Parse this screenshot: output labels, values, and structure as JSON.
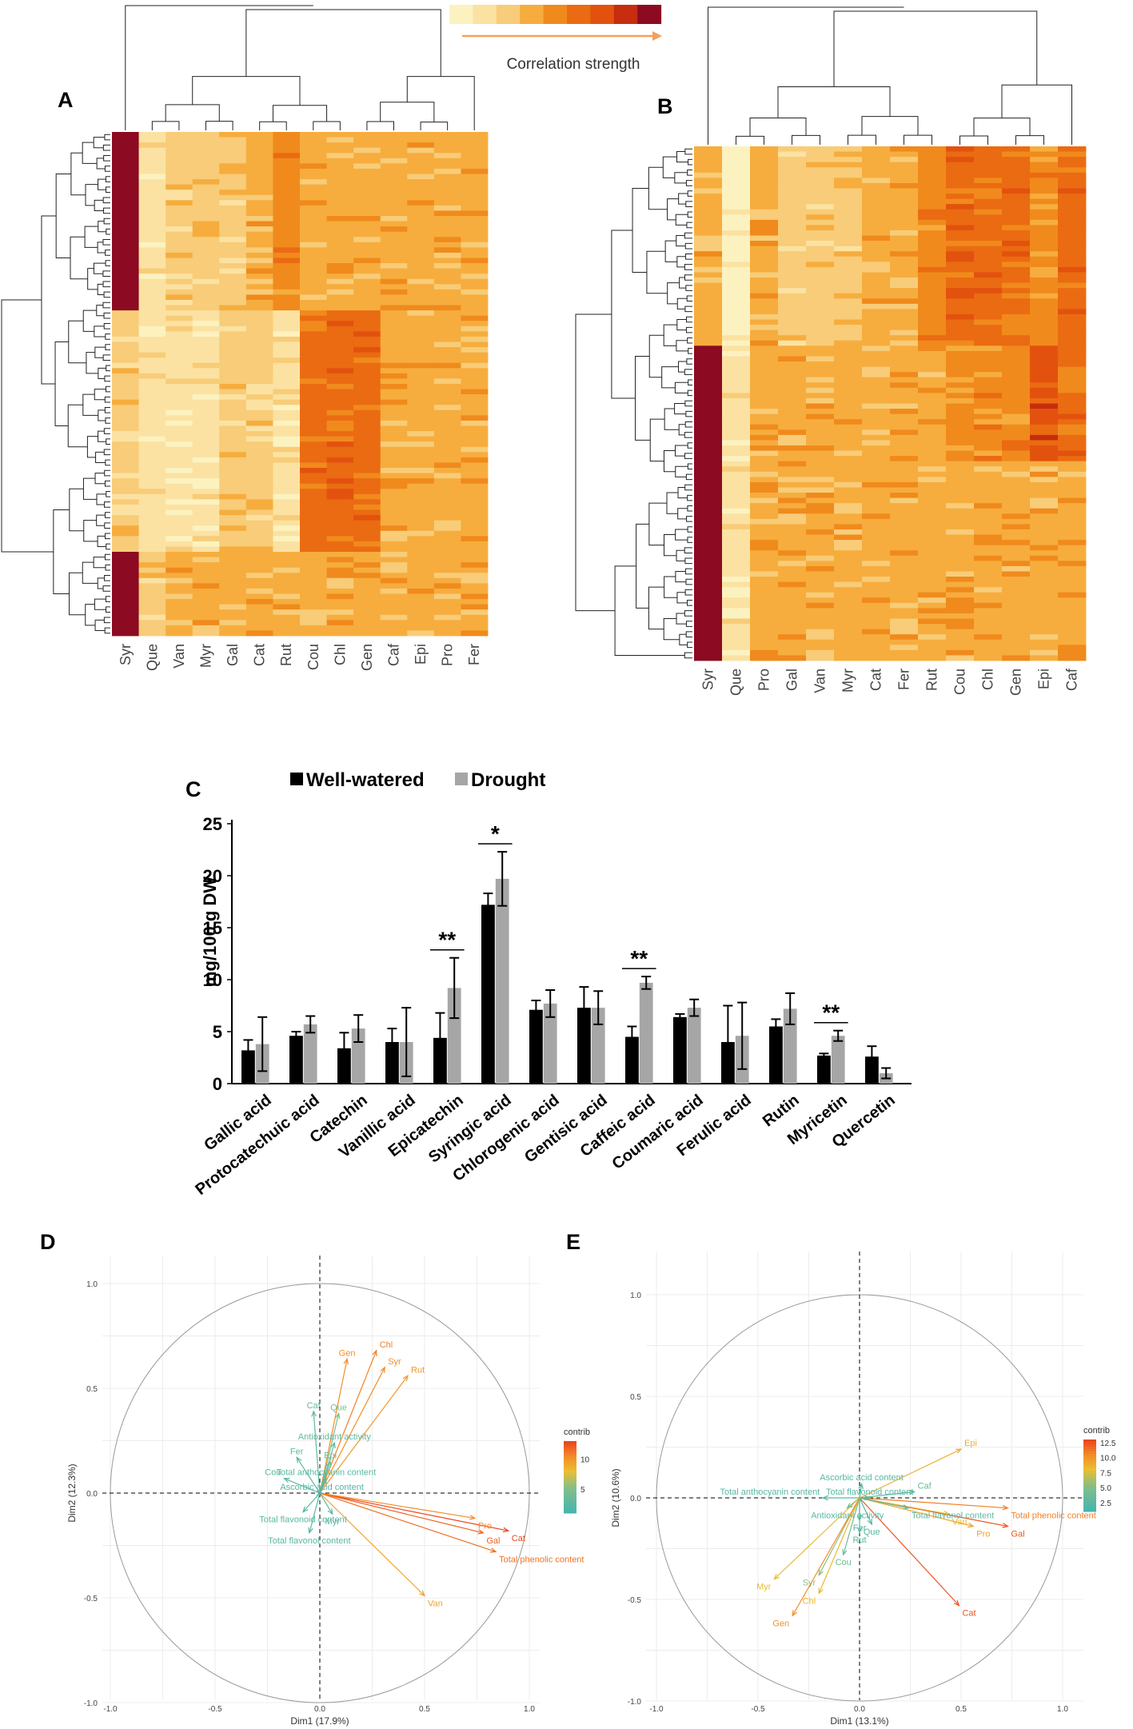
{
  "figure": {
    "panel_labels": [
      "A",
      "B",
      "C",
      "D",
      "E"
    ],
    "legend_label": "Correlation strength",
    "scale_colors": [
      "#fcf2c0",
      "#fbe2a2",
      "#f8cc78",
      "#f6ad3e",
      "#f08a1c",
      "#ea6b12",
      "#e2520e",
      "#c72d0e",
      "#8c0a22"
    ]
  },
  "heatmap_a": {
    "columns": [
      "Syr",
      "Que",
      "Van",
      "Myr",
      "Gal",
      "Cat",
      "Rut",
      "Cou",
      "Chl",
      "Gen",
      "Caf",
      "Epi",
      "Pro",
      "Fer"
    ]
  },
  "heatmap_b": {
    "columns": [
      "Syr",
      "Que",
      "Pro",
      "Gal",
      "Van",
      "Myr",
      "Cat",
      "Fer",
      "Rut",
      "Cou",
      "Chl",
      "Gen",
      "Epi",
      "Caf"
    ]
  },
  "chart_data": [
    {
      "type": "heatmap",
      "panel": "A",
      "columns": [
        "Syr",
        "Que",
        "Van",
        "Myr",
        "Gal",
        "Cat",
        "Rut",
        "Cou",
        "Chl",
        "Gen",
        "Caf",
        "Epi",
        "Pro",
        "Fer"
      ],
      "row_groups": [
        {
          "rows": 34,
          "levels": [
            8,
            1,
            2,
            2,
            2,
            3,
            4,
            3,
            3,
            3,
            3,
            3,
            3,
            3
          ]
        },
        {
          "rows": 46,
          "levels": [
            2,
            1,
            1,
            1,
            2,
            2,
            1,
            5,
            5,
            5,
            3,
            3,
            3,
            3
          ]
        },
        {
          "rows": 16,
          "levels": [
            8,
            2,
            3,
            3,
            3,
            3,
            3,
            3,
            3,
            3,
            3,
            3,
            3,
            3
          ]
        }
      ],
      "legend": "Correlation strength"
    },
    {
      "type": "heatmap",
      "panel": "B",
      "columns": [
        "Syr",
        "Que",
        "Pro",
        "Gal",
        "Van",
        "Myr",
        "Cat",
        "Fer",
        "Rut",
        "Cou",
        "Chl",
        "Gen",
        "Epi",
        "Caf"
      ],
      "row_groups": [
        {
          "rows": 38,
          "levels": [
            3,
            0,
            3,
            2,
            2,
            2,
            3,
            3,
            4,
            5,
            5,
            5,
            4,
            5
          ]
        },
        {
          "rows": 22,
          "levels": [
            8,
            1,
            3,
            3,
            3,
            3,
            3,
            3,
            3,
            4,
            4,
            4,
            6,
            5
          ]
        },
        {
          "rows": 38,
          "levels": [
            8,
            1,
            3,
            3,
            3,
            3,
            3,
            3,
            3,
            3,
            3,
            3,
            3,
            3
          ]
        }
      ],
      "legend": "Correlation strength"
    },
    {
      "type": "bar",
      "panel": "C",
      "categories": [
        "Gallic acid",
        "Protocatechuic acid",
        "Catechin",
        "Vanillic acid",
        "Epicatechin",
        "Syringic acid",
        "Chlorogenic acid",
        "Gentisic acid",
        "Caffeic acid",
        "Coumaric acid",
        "Ferulic acid",
        "Rutin",
        "Myricetin",
        "Quercetin"
      ],
      "series": [
        {
          "name": "Well-watered",
          "color": "#000000",
          "values": [
            3.2,
            4.6,
            3.4,
            4.0,
            4.4,
            17.2,
            7.1,
            7.3,
            4.5,
            6.4,
            4.0,
            5.5,
            2.7,
            2.6
          ],
          "errors": [
            1.0,
            0.4,
            1.5,
            1.3,
            2.4,
            1.1,
            0.9,
            2.0,
            1.0,
            0.3,
            3.5,
            0.7,
            0.2,
            1.0
          ]
        },
        {
          "name": "Drought",
          "color": "#a6a6a6",
          "values": [
            3.8,
            5.7,
            5.3,
            4.0,
            9.2,
            19.7,
            7.7,
            7.3,
            9.7,
            7.3,
            4.6,
            7.2,
            4.6,
            1.0
          ],
          "errors": [
            2.6,
            0.8,
            1.3,
            3.3,
            2.9,
            2.6,
            1.3,
            1.6,
            0.6,
            0.8,
            3.2,
            1.5,
            0.5,
            0.5
          ]
        }
      ],
      "ylabel": "mg/100 g DW",
      "ylim": [
        0,
        25
      ],
      "yticks": [
        0,
        5,
        10,
        15,
        20,
        25
      ],
      "legend_position": "top",
      "significance": [
        {
          "category": "Epicatechin",
          "label": "**"
        },
        {
          "category": "Syringic acid",
          "label": "*"
        },
        {
          "category": "Caffeic acid",
          "label": "**"
        },
        {
          "category": "Myricetin",
          "label": "**"
        }
      ]
    },
    {
      "type": "scatter",
      "panel": "D",
      "xlabel": "Dim1 (17.9%)",
      "ylabel": "Dim2 (12.3%)",
      "xlim": [
        -1.0,
        1.0
      ],
      "ylim": [
        -1.0,
        1.0
      ],
      "ticks": [
        "-1.0",
        "-0.5",
        "0.0",
        "0.5",
        "1.0"
      ],
      "legend_title": "contrib",
      "legend_ticks": [
        "5",
        "10"
      ],
      "legend_tick_values": [
        5,
        10
      ],
      "legend_range": [
        1,
        13
      ],
      "vectors": [
        {
          "label": "Gen",
          "x": 0.13,
          "y": 0.64,
          "contrib": 10.5
        },
        {
          "label": "Chl",
          "x": 0.27,
          "y": 0.68,
          "contrib": 11.0
        },
        {
          "label": "Syr",
          "x": 0.31,
          "y": 0.6,
          "contrib": 10.5
        },
        {
          "label": "Rut",
          "x": 0.42,
          "y": 0.56,
          "contrib": 10.0
        },
        {
          "label": "Cat",
          "x": 0.9,
          "y": -0.18,
          "contrib": 13.0
        },
        {
          "label": "Gal",
          "x": 0.78,
          "y": -0.19,
          "contrib": 12.0
        },
        {
          "label": "Pro",
          "x": 0.74,
          "y": -0.12,
          "contrib": 10.5
        },
        {
          "label": "Total phenolic content",
          "x": 0.84,
          "y": -0.28,
          "contrib": 11.5
        },
        {
          "label": "Van",
          "x": 0.5,
          "y": -0.49,
          "contrib": 9.5
        },
        {
          "label": "Que",
          "x": 0.09,
          "y": 0.38,
          "contrib": 5.0
        },
        {
          "label": "Caf",
          "x": -0.03,
          "y": 0.39,
          "contrib": 3.0
        },
        {
          "label": "Antioxidant activity",
          "x": 0.07,
          "y": 0.24,
          "contrib": 3.0
        },
        {
          "label": "Epi",
          "x": 0.05,
          "y": 0.15,
          "contrib": 4.0
        },
        {
          "label": "Fer",
          "x": -0.11,
          "y": 0.17,
          "contrib": 3.0
        },
        {
          "label": "Cou",
          "x": -0.17,
          "y": 0.07,
          "contrib": 2.5
        },
        {
          "label": "Total anthocyanin content",
          "x": 0.03,
          "y": 0.07,
          "contrib": 2.5
        },
        {
          "label": "Ascorbic acid content",
          "x": 0.01,
          "y": 0.0,
          "contrib": 2.0
        },
        {
          "label": "Total flavonoid content",
          "x": -0.08,
          "y": -0.09,
          "contrib": 2.5
        },
        {
          "label": "Myr",
          "x": 0.06,
          "y": -0.1,
          "contrib": 2.5
        },
        {
          "label": "Total flavonol content",
          "x": -0.05,
          "y": -0.19,
          "contrib": 2.5
        }
      ]
    },
    {
      "type": "scatter",
      "panel": "E",
      "xlabel": "Dim1 (13.1%)",
      "ylabel": "Dim2 (10.6%)",
      "xlim": [
        -1.0,
        1.0
      ],
      "ylim": [
        -1.0,
        1.0
      ],
      "ticks": [
        "-1.0",
        "-0.5",
        "0.0",
        "0.5",
        "1.0"
      ],
      "legend_title": "contrib",
      "legend_ticks": [
        "12.5",
        "10.0",
        "7.5",
        "5.0",
        "2.5"
      ],
      "legend_tick_values": [
        12.5,
        10.0,
        7.5,
        5.0,
        2.5
      ],
      "legend_range": [
        1,
        13
      ],
      "vectors": [
        {
          "label": "Epi",
          "x": 0.5,
          "y": 0.24,
          "contrib": 9.0
        },
        {
          "label": "Total phenolic content",
          "x": 0.73,
          "y": -0.05,
          "contrib": 11.0
        },
        {
          "label": "Gal",
          "x": 0.73,
          "y": -0.14,
          "contrib": 12.5
        },
        {
          "label": "Van",
          "x": 0.44,
          "y": -0.08,
          "contrib": 8.0
        },
        {
          "label": "Pro",
          "x": 0.56,
          "y": -0.14,
          "contrib": 9.5
        },
        {
          "label": "Cat",
          "x": 0.49,
          "y": -0.53,
          "contrib": 12.5
        },
        {
          "label": "Caf",
          "x": 0.27,
          "y": 0.03,
          "contrib": 3.5
        },
        {
          "label": "Ascorbic acid content",
          "x": 0.01,
          "y": 0.07,
          "contrib": 2.5
        },
        {
          "label": "Total anthocyanin content",
          "x": -0.18,
          "y": 0.0,
          "contrib": 2.5
        },
        {
          "label": "Total flavonoid content",
          "x": 0.05,
          "y": 0.0,
          "contrib": 2.5
        },
        {
          "label": "Total flavonol content",
          "x": 0.24,
          "y": -0.05,
          "contrib": 3.0
        },
        {
          "label": "Antioxidant activity",
          "x": -0.06,
          "y": -0.05,
          "contrib": 2.5
        },
        {
          "label": "Fer",
          "x": 0.0,
          "y": -0.11,
          "contrib": 2.5
        },
        {
          "label": "Que",
          "x": 0.06,
          "y": -0.13,
          "contrib": 2.5
        },
        {
          "label": "Rut",
          "x": 0.0,
          "y": -0.17,
          "contrib": 2.5
        },
        {
          "label": "Cou",
          "x": -0.08,
          "y": -0.28,
          "contrib": 4.0
        },
        {
          "label": "Syr",
          "x": -0.2,
          "y": -0.38,
          "contrib": 5.5
        },
        {
          "label": "Myr",
          "x": -0.42,
          "y": -0.4,
          "contrib": 8.0
        },
        {
          "label": "Chl",
          "x": -0.2,
          "y": -0.47,
          "contrib": 8.5
        },
        {
          "label": "Gen",
          "x": -0.33,
          "y": -0.58,
          "contrib": 10.5
        }
      ]
    }
  ]
}
